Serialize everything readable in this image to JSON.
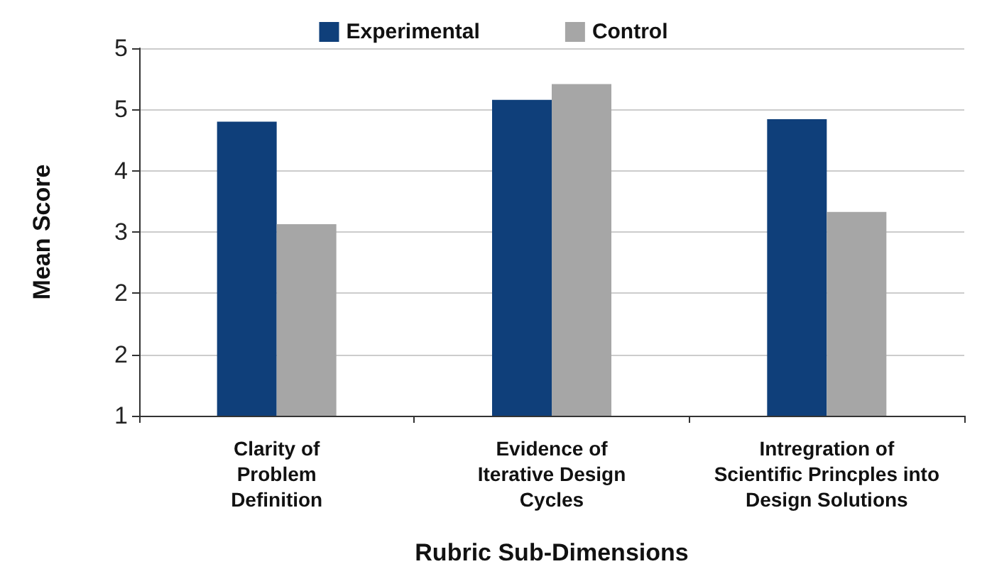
{
  "chart_data": {
    "type": "bar",
    "xlabel": "Rubric Sub-Dimensions",
    "ylabel": "Mean Score",
    "categories": [
      "Clarity of\nProblem\nDefinition",
      "Evidence of\nIterative Design\nCycles",
      "Intregration of\nScientific Princples into\nDesign Solutions"
    ],
    "series": [
      {
        "name": "Experimental",
        "color": "#0f3f7a",
        "values": [
          4.36,
          4.61,
          4.39
        ]
      },
      {
        "name": "Control",
        "color": "#a6a6a6",
        "values": [
          3.19,
          4.79,
          3.33
        ]
      }
    ],
    "ylim": [
      1,
      5.2
    ],
    "yticks": [
      1,
      {
        "value": 1.7,
        "label": "2"
      },
      {
        "value": 2.4,
        "label": "2"
      },
      {
        "value": 3.1,
        "label": "3"
      },
      {
        "value": 3.8,
        "label": "4"
      },
      {
        "value": 4.5,
        "label": "5"
      },
      {
        "value": 5.2,
        "label": "5"
      }
    ],
    "grid": "y",
    "legend": "top"
  }
}
